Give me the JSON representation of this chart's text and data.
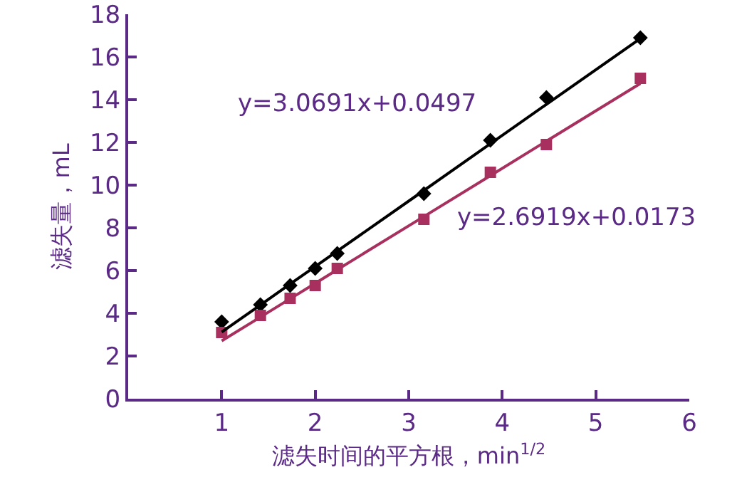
{
  "chart_data": {
    "type": "scatter",
    "xlabel": "滤失时间的平方根，min$^{1/2}$",
    "ylabel": "滤失量，mL",
    "x": [
      1,
      1.414,
      1.732,
      2,
      2.236,
      3.162,
      3.873,
      4.472,
      5.477
    ],
    "series": [
      {
        "color": "#000000",
        "marker": "diamond",
        "values": [
          3.6,
          4.4,
          5.3,
          6.1,
          6.8,
          9.6,
          12.1,
          14.1,
          16.9
        ]
      },
      {
        "color": "#a8305f",
        "marker": "square",
        "values": [
          3.1,
          3.9,
          4.7,
          5.3,
          6.1,
          8.4,
          10.6,
          11.9,
          15.0
        ]
      },
      {
        "type": "line",
        "color": "#000000",
        "values": [
          3.12,
          4.39,
          5.37,
          6.19,
          6.91,
          9.75,
          11.94,
          13.78,
          16.86
        ],
        "marker": "none"
      },
      {
        "type": "line",
        "color": "#a8305f",
        "values": [
          2.71,
          3.82,
          4.68,
          5.4,
          6.04,
          8.53,
          10.44,
          12.06,
          14.76
        ],
        "marker": "none"
      }
    ],
    "annotations": [
      "y=3.0691x+0.0497",
      "y=2.6919x+0.0173"
    ],
    "xlim": [
      0,
      6
    ],
    "xticks": [
      1,
      2,
      3,
      4,
      5,
      6
    ],
    "ylim": [
      0,
      18
    ],
    "yticks": [
      0,
      2,
      4,
      6,
      8,
      10,
      12,
      14,
      16,
      18
    ],
    "grid": false
  }
}
